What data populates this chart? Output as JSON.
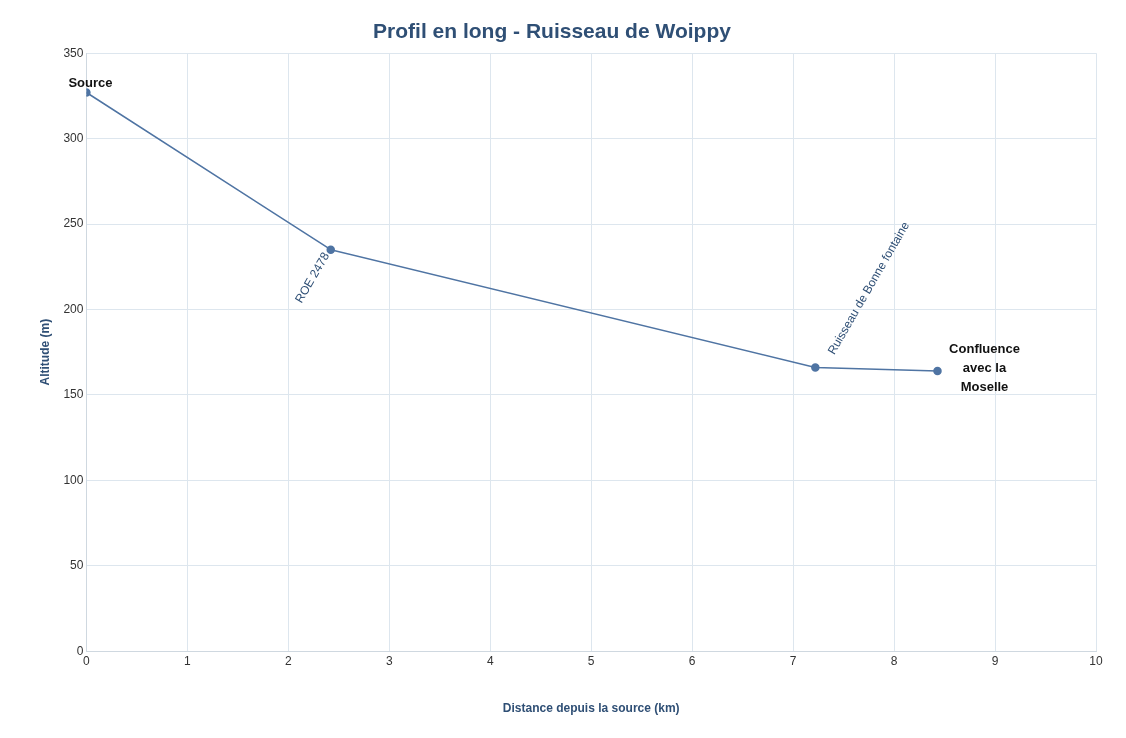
{
  "chart_data": {
    "type": "line",
    "title": "Profil en long - Ruisseau de Woippy",
    "xlabel": "Distance depuis la source (km)",
    "ylabel": "Altitude (m)",
    "x": [
      0,
      2.42,
      7.22,
      8.43
    ],
    "series": [
      {
        "color": "#4f74a3",
        "values": [
          327,
          235,
          166,
          164
        ]
      }
    ],
    "xlim": [
      0,
      10
    ],
    "xticks": [
      0,
      1,
      2,
      3,
      4,
      5,
      6,
      7,
      8,
      9,
      10
    ],
    "ylim": [
      0,
      350
    ],
    "yticks": [
      0,
      50,
      100,
      150,
      200,
      250,
      300,
      350
    ],
    "grid": true,
    "legend": false,
    "marker": "circle",
    "line_style": "solid",
    "annotations": [
      {
        "text": "Source",
        "x": 0,
        "y": 327
      },
      {
        "text": "ROE 2478",
        "x": 2.42,
        "y": 235
      },
      {
        "text": "Ruisseau de Bonne fontaine",
        "x": 7.22,
        "y": 166
      },
      {
        "text": "Confluence avec la Moselle",
        "x": 8.43,
        "y": 164
      }
    ]
  }
}
